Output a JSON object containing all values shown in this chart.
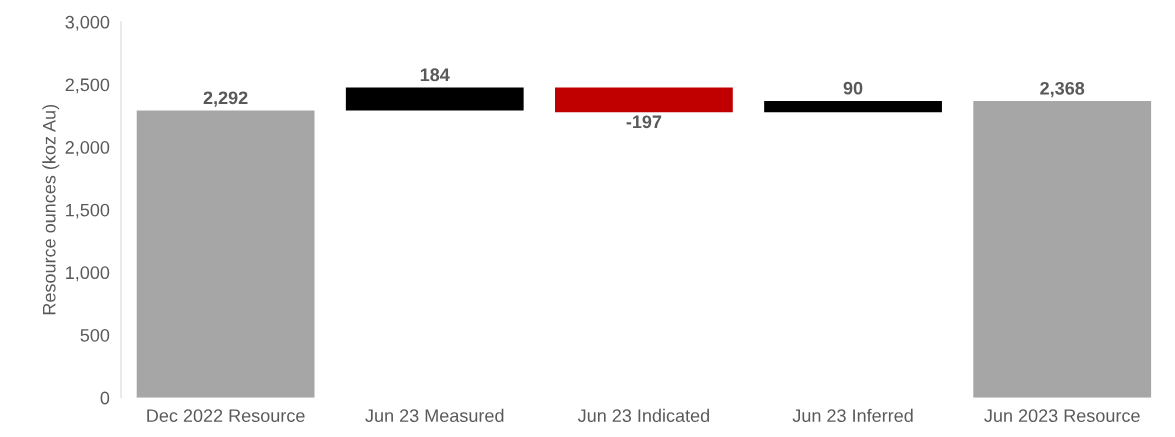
{
  "chart_data": {
    "type": "bar",
    "ylabel": "Resource ounces (koz Au)",
    "categories": [
      "Dec 2022 Resource",
      "Jun 23 Measured",
      "Jun 23 Indicated",
      "Jun 23 Inferred",
      "Jun 2023 Resource"
    ],
    "values": [
      2292,
      184,
      -197,
      90,
      2368
    ],
    "base": [
      0,
      2292,
      2476,
      2279,
      0
    ],
    "colors": [
      "#a6a6a6",
      "#000000",
      "#c00000",
      "#000000",
      "#a6a6a6"
    ],
    "value_labels": [
      "2,292",
      "184",
      "-197",
      "90",
      "2,368"
    ],
    "ylim": [
      0,
      3000
    ],
    "yticks": [
      0,
      500,
      {
        "value": 1000,
        "label": "1,000"
      },
      {
        "value": 1500,
        "label": "1,500"
      },
      {
        "value": 2000,
        "label": "2,000"
      },
      {
        "value": 2500,
        "label": "2,500"
      },
      {
        "value": 3000,
        "label": "3,000"
      }
    ],
    "grid": false,
    "legend": false
  }
}
